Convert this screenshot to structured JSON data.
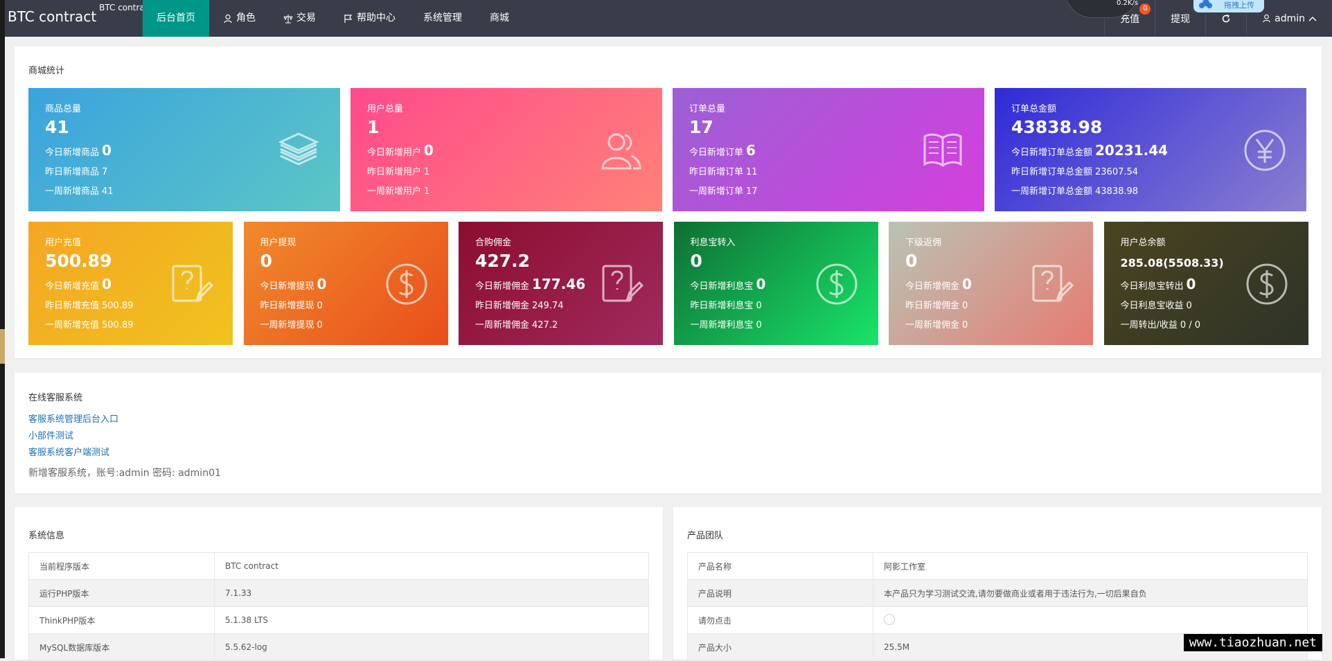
{
  "header": {
    "brand": "BTC contract",
    "brand_sup": "BTC contract",
    "nav": [
      {
        "label": "后台首页",
        "icon": "none"
      },
      {
        "label": "角色",
        "icon": "user-icon"
      },
      {
        "label": "交易",
        "icon": "scale-icon"
      },
      {
        "label": "帮助中心",
        "icon": "flag-icon"
      },
      {
        "label": "系统管理",
        "icon": "none"
      },
      {
        "label": "商城",
        "icon": "none"
      }
    ],
    "right": {
      "recharge": "充值",
      "recharge_badge": "0",
      "withdraw": "提现",
      "user": "admin"
    },
    "overlay": {
      "speed": "0.2K/s",
      "upload": "拖拽上传"
    }
  },
  "stats": {
    "title": "商城统计",
    "row1": [
      {
        "label": "商品总量",
        "total": "41",
        "l1": "今日新增商品",
        "v1": "0",
        "l2": "昨日新增商品",
        "v2": "7",
        "l3": "一周新增商品",
        "v3": "41",
        "icon": "layers-icon",
        "color1": "#3ba3de",
        "color2": "#5cc6c6"
      },
      {
        "label": "用户总量",
        "total": "1",
        "l1": "今日新增用户",
        "v1": "0",
        "l2": "昨日新增用户",
        "v2": "1",
        "l3": "一周新增用户",
        "v3": "1",
        "icon": "users-icon",
        "color1": "#ff4a8c",
        "color2": "#ff8178"
      },
      {
        "label": "订单总量",
        "total": "17",
        "l1": "今日新增订单",
        "v1": "6",
        "l2": "昨日新增订单",
        "v2": "11",
        "l3": "一周新增订单",
        "v3": "17",
        "icon": "book-icon",
        "color1": "#9c5fd6",
        "color2": "#d43fdd"
      },
      {
        "label": "订单总金额",
        "total": "43838.98",
        "l1": "今日新增订单总金额",
        "v1": "20231.44",
        "l2": "昨日新增订单总金额",
        "v2": "23607.54",
        "l3": "一周新增订单总金额",
        "v3": "43838.98",
        "icon": "yen-icon",
        "color1": "#2f2ad8",
        "color2": "#8a7fd0"
      }
    ],
    "row2": [
      {
        "label": "用户充值",
        "total": "500.89",
        "l1": "今日新增充值",
        "v1": "0",
        "l2": "昨日新增充值",
        "v2": "500.89",
        "l3": "一周新增充值",
        "v3": "500.89",
        "icon": "edit-icon",
        "color1": "#f5a623",
        "color2": "#efc31f"
      },
      {
        "label": "用户提现",
        "total": "0",
        "l1": "今日新增提现",
        "v1": "0",
        "l2": "昨日新增提现",
        "v2": "0",
        "l3": "一周新增提现",
        "v3": "0",
        "icon": "dollar-icon",
        "color1": "#f08a2c",
        "color2": "#e94e1b"
      },
      {
        "label": "合购佣金",
        "total": "427.2",
        "l1": "今日新增佣金",
        "v1": "177.46",
        "l2": "昨日新增佣金",
        "v2": "249.74",
        "l3": "一周新增佣金",
        "v3": "427.2",
        "icon": "edit-icon",
        "color1": "#8c0d2e",
        "color2": "#a02a5e"
      },
      {
        "label": "利息宝转入",
        "total": "0",
        "l1": "今日新增利息宝",
        "v1": "0",
        "l2": "昨日新增利息宝",
        "v2": "0",
        "l3": "一周新增利息宝",
        "v3": "0",
        "icon": "dollar-icon",
        "color1": "#0e6f33",
        "color2": "#19e46a"
      },
      {
        "label": "下级返佣",
        "total": "0",
        "l1": "今日新增佣金",
        "v1": "0",
        "l2": "昨日新增佣金",
        "v2": "0",
        "l3": "一周新增佣金",
        "v3": "0",
        "icon": "edit-icon",
        "color1": "#b9c3b4",
        "color2": "#e77b72"
      },
      {
        "label": "用户总余额",
        "total": "285.08(5508.33)",
        "l1": "今日利息宝转出",
        "v1": "0",
        "l2": "今日利息宝收益",
        "v2": "0",
        "l3": "一周转出/收益",
        "v3": "0 / 0",
        "icon": "dollar-icon",
        "color1": "#4a4420",
        "color2": "#2e3327"
      }
    ]
  },
  "customer_service": {
    "title": "在线客服系统",
    "links": [
      "客服系统管理后台入口",
      "小部件测试",
      "客服系统客户端测试"
    ],
    "note": "新增客服系统，账号:admin 密码: admin01"
  },
  "system_info": {
    "title": "系统信息",
    "rows": [
      [
        "当前程序版本",
        "BTC contract"
      ],
      [
        "运行PHP版本",
        "7.1.33"
      ],
      [
        "ThinkPHP版本",
        "5.1.38 LTS"
      ],
      [
        "MySQL数据库版本",
        "5.5.62-log"
      ]
    ]
  },
  "product_team": {
    "title": "产品团队",
    "rows": [
      [
        "产品名称",
        "阿影工作室"
      ],
      [
        "产品说明",
        "本产品只为学习测试交流,请勿要做商业或者用于违法行为,一切后果自负"
      ],
      [
        "请勿点击",
        ""
      ],
      [
        "产品大小",
        "25.5M"
      ]
    ]
  },
  "watermark": "www.tiaozhuan.net"
}
